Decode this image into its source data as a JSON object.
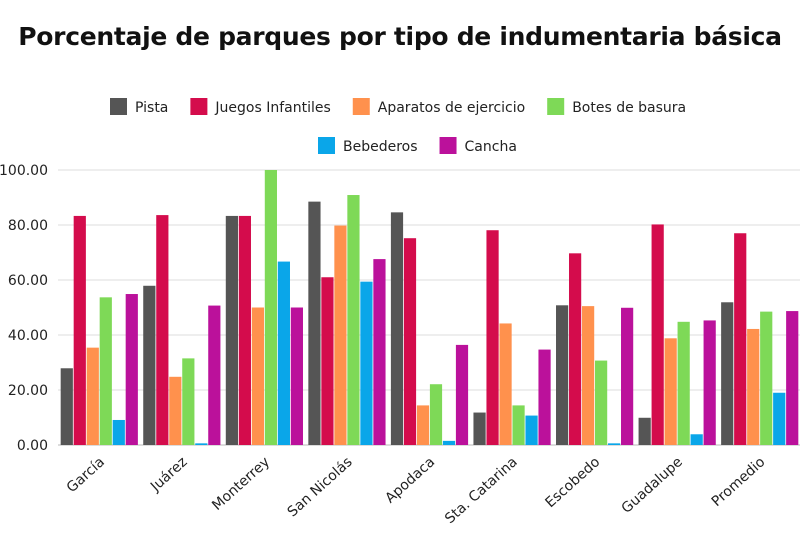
{
  "chart_data": {
    "type": "bar",
    "title": "Porcentaje de parques por tipo de indumentaria básica",
    "xlabel": "",
    "ylabel": "",
    "ylim": [
      0,
      100
    ],
    "yticks": [
      "0.00",
      "20.00",
      "40.00",
      "60.00",
      "80.00",
      "100.00"
    ],
    "grid": true,
    "legend_position": "top",
    "categories": [
      "García",
      "Juárez",
      "Monterrey",
      "San Nicolás",
      "Apodaca",
      "Sta. Catarina",
      "Escobedo",
      "Guadalupe",
      "Promedio"
    ],
    "series": [
      {
        "name": "Pista",
        "color": "#555555",
        "values": [
          27.9,
          57.9,
          83.3,
          88.5,
          84.6,
          11.8,
          50.8,
          9.9,
          51.9
        ]
      },
      {
        "name": "Juegos Infantiles",
        "color": "#d40c4c",
        "values": [
          83.3,
          83.6,
          83.3,
          61.0,
          75.2,
          78.1,
          69.7,
          80.2,
          77.0
        ]
      },
      {
        "name": "Aparatos de ejercicio",
        "color": "#ff914d",
        "values": [
          35.4,
          24.8,
          50.0,
          79.8,
          14.4,
          44.2,
          50.5,
          38.8,
          42.2
        ]
      },
      {
        "name": "Botes de basura",
        "color": "#7ed957",
        "values": [
          53.7,
          31.5,
          100.0,
          90.9,
          22.1,
          14.4,
          30.7,
          44.8,
          48.5
        ]
      },
      {
        "name": "Bebederos",
        "color": "#0aa6e9",
        "values": [
          9.1,
          0.6,
          66.7,
          59.4,
          1.5,
          10.7,
          0.6,
          3.9,
          19.0
        ]
      },
      {
        "name": "Cancha",
        "color": "#bb119b",
        "values": [
          54.9,
          50.7,
          50.0,
          67.6,
          36.4,
          34.7,
          49.9,
          45.3,
          48.7
        ]
      }
    ]
  }
}
